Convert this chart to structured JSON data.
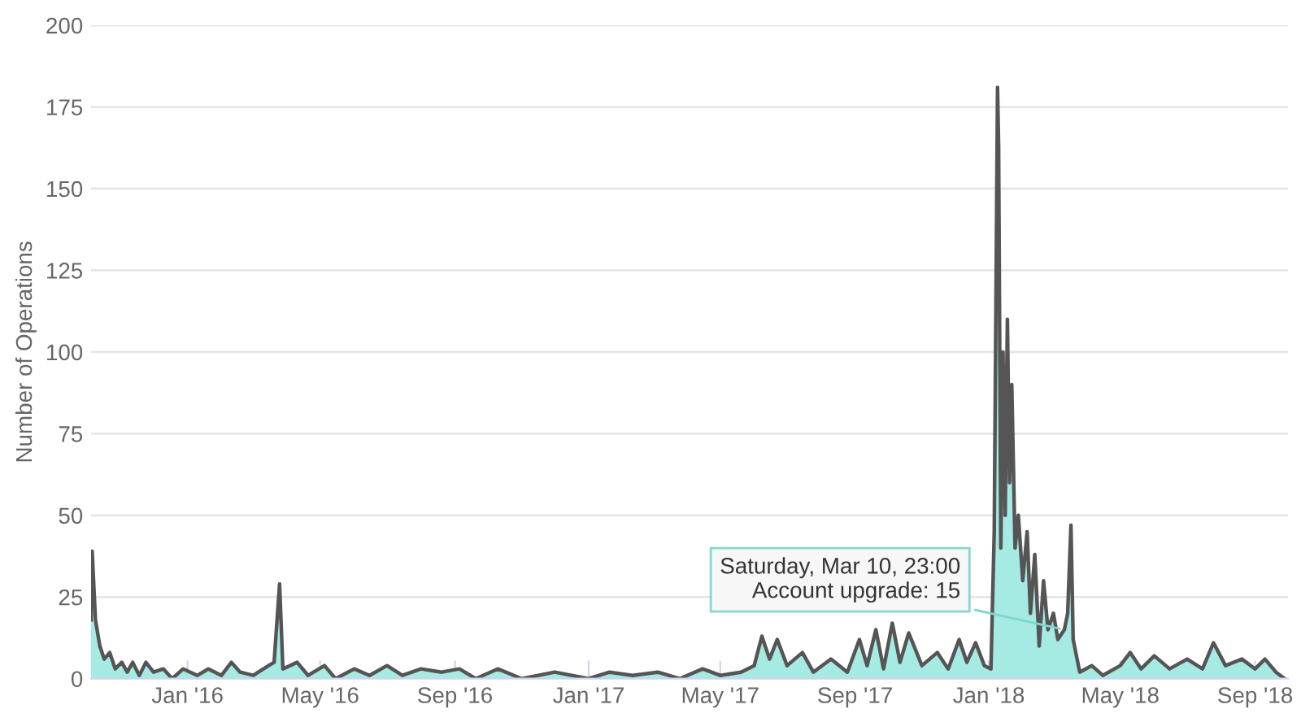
{
  "chart_data": {
    "type": "area",
    "ylabel": "Number of Operations",
    "annotations": [
      {
        "text": "Saturday, Mar 10, 23:00\nAccount upgrade: 15",
        "x": "2018-03-10T23:00",
        "y": 15
      }
    ],
    "xlim": [
      "2015-10-05",
      "2018-10-01"
    ],
    "xticks": [
      {
        "value": "2016-01-01",
        "label": "Jan '16"
      },
      {
        "value": "2016-05-01",
        "label": "May '16"
      },
      {
        "value": "2016-09-01",
        "label": "Sep '16"
      },
      {
        "value": "2017-01-01",
        "label": "Jan '17"
      },
      {
        "value": "2017-05-01",
        "label": "May '17"
      },
      {
        "value": "2017-09-01",
        "label": "Sep '17"
      },
      {
        "value": "2018-01-01",
        "label": "Jan '18"
      },
      {
        "value": "2018-05-01",
        "label": "May '18"
      },
      {
        "value": "2018-09-01",
        "label": "Sep '18"
      }
    ],
    "ylim": [
      0,
      200
    ],
    "yticks": [
      0,
      25,
      50,
      75,
      100,
      125,
      150,
      175,
      200
    ],
    "grid": "y",
    "legend": false,
    "series": [
      {
        "color": "#a5ebe3",
        "x": [
          "2015-10-05",
          "2015-10-06",
          "2015-10-09",
          "2015-10-13",
          "2015-10-17",
          "2015-10-22",
          "2015-10-27",
          "2015-11-02",
          "2015-11-07",
          "2015-11-12",
          "2015-11-18",
          "2015-11-24",
          "2015-12-01",
          "2015-12-10",
          "2015-12-18",
          "2015-12-28",
          "2016-01-10",
          "2016-01-20",
          "2016-02-01",
          "2016-02-10",
          "2016-02-18",
          "2016-03-01",
          "2016-03-15",
          "2016-03-20",
          "2016-03-25",
          "2016-03-28",
          "2016-04-10",
          "2016-04-20",
          "2016-05-05",
          "2016-05-15",
          "2016-06-01",
          "2016-06-15",
          "2016-07-01",
          "2016-07-15",
          "2016-08-01",
          "2016-08-20",
          "2016-09-05",
          "2016-09-20",
          "2016-10-10",
          "2016-11-01",
          "2016-12-01",
          "2017-01-01",
          "2017-01-20",
          "2017-02-10",
          "2017-03-05",
          "2017-03-25",
          "2017-04-15",
          "2017-05-01",
          "2017-05-20",
          "2017-06-01",
          "2017-06-08",
          "2017-06-15",
          "2017-06-22",
          "2017-07-01",
          "2017-07-15",
          "2017-07-25",
          "2017-08-10",
          "2017-08-25",
          "2017-09-05",
          "2017-09-12",
          "2017-09-20",
          "2017-09-27",
          "2017-10-05",
          "2017-10-12",
          "2017-10-20",
          "2017-11-01",
          "2017-11-15",
          "2017-11-25",
          "2017-12-05",
          "2017-12-12",
          "2017-12-20",
          "2017-12-28",
          "2018-01-03",
          "2018-01-06",
          "2018-01-09",
          "2018-01-10",
          "2018-01-12",
          "2018-01-14",
          "2018-01-16",
          "2018-01-18",
          "2018-01-20",
          "2018-01-22",
          "2018-01-25",
          "2018-01-28",
          "2018-02-01",
          "2018-02-05",
          "2018-02-08",
          "2018-02-12",
          "2018-02-16",
          "2018-02-20",
          "2018-02-24",
          "2018-03-01",
          "2018-03-05",
          "2018-03-10T23:00",
          "2018-03-14",
          "2018-03-17",
          "2018-03-19",
          "2018-03-25",
          "2018-04-05",
          "2018-04-15",
          "2018-05-01",
          "2018-05-10",
          "2018-05-20",
          "2018-06-01",
          "2018-06-15",
          "2018-07-01",
          "2018-07-15",
          "2018-07-25",
          "2018-08-05",
          "2018-08-20",
          "2018-09-01",
          "2018-09-10",
          "2018-09-20",
          "2018-09-28"
        ],
        "values": [
          18,
          39,
          18,
          10,
          6,
          8,
          3,
          5,
          2,
          5,
          1,
          5,
          2,
          3,
          0,
          3,
          1,
          3,
          1,
          5,
          2,
          1,
          4,
          5,
          29,
          3,
          5,
          1,
          4,
          0,
          3,
          1,
          4,
          1,
          3,
          2,
          3,
          0,
          3,
          0,
          2,
          0,
          2,
          1,
          2,
          0,
          3,
          1,
          2,
          4,
          13,
          6,
          12,
          4,
          8,
          2,
          6,
          2,
          12,
          4,
          15,
          3,
          17,
          5,
          14,
          4,
          8,
          3,
          12,
          5,
          11,
          4,
          3,
          45,
          181,
          163,
          40,
          100,
          50,
          110,
          60,
          90,
          40,
          50,
          30,
          45,
          20,
          38,
          10,
          30,
          15,
          20,
          12,
          15,
          20,
          47,
          12,
          2,
          4,
          1,
          4,
          8,
          3,
          7,
          3,
          6,
          3,
          11,
          4,
          6,
          3,
          6,
          2,
          0
        ]
      }
    ]
  }
}
